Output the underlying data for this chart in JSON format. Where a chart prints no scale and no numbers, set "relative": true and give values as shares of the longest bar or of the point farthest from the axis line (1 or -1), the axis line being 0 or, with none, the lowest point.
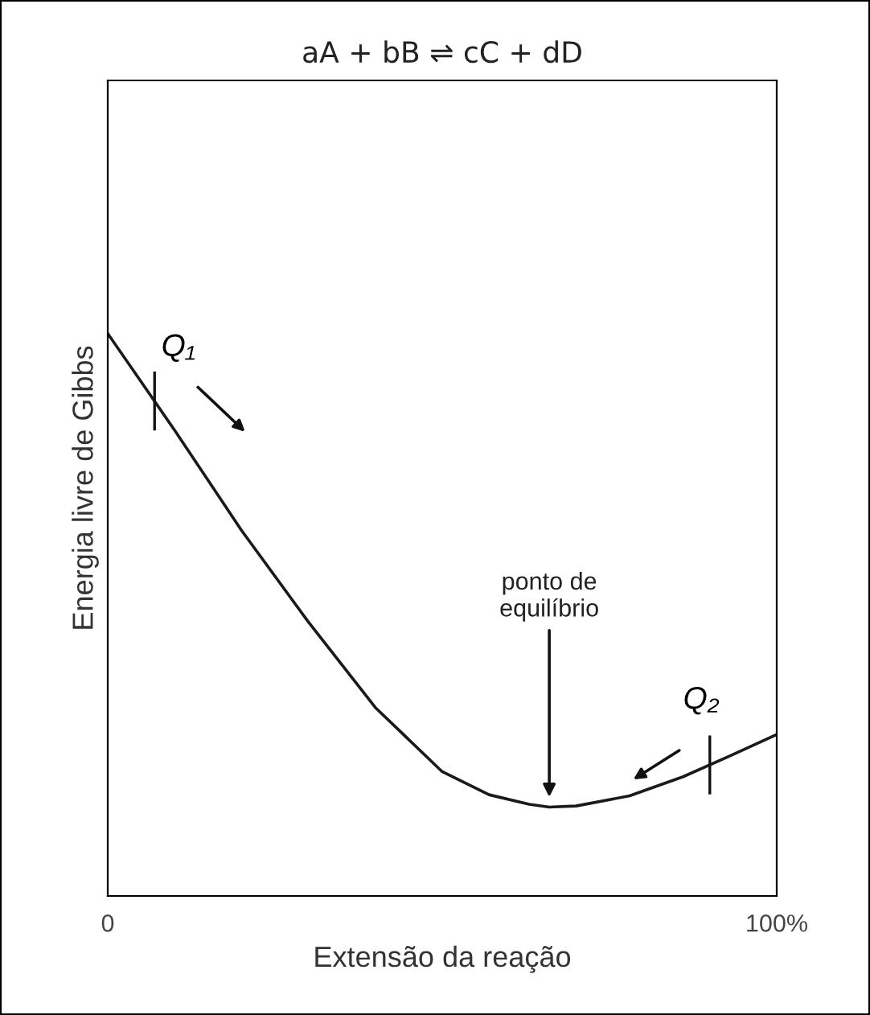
{
  "chart_data": {
    "type": "line",
    "title": "aA + bB ⇌ cC + dD",
    "xlabel": "Extensão da reação",
    "ylabel": "Energia livre de Gibbs",
    "relative": true,
    "xlim": [
      0,
      100
    ],
    "xticks": [
      {
        "value": 0,
        "label": "0"
      },
      {
        "value": 100,
        "label": "100%"
      }
    ],
    "tick_labels": "x",
    "grid": false,
    "legend": false,
    "marker": "none",
    "line_style": "solid",
    "x": [
      0,
      5,
      10,
      20,
      30,
      40,
      50,
      57,
      63,
      66,
      70,
      78,
      86,
      93,
      100
    ],
    "series": [
      {
        "color": "#1a1a1a",
        "values": [
          1.0,
          0.914,
          0.828,
          0.65,
          0.487,
          0.335,
          0.221,
          0.18,
          0.163,
          0.158,
          0.16,
          0.178,
          0.212,
          0.249,
          0.287
        ]
      }
    ],
    "annotations": [
      {
        "text": "Q₁",
        "x": 7,
        "y": 0.88
      },
      {
        "text": "Q₂",
        "x": 90,
        "y": 0.233
      },
      {
        "text": "ponto de\nequilíbrio",
        "x": 66,
        "y": 0.158
      }
    ]
  }
}
